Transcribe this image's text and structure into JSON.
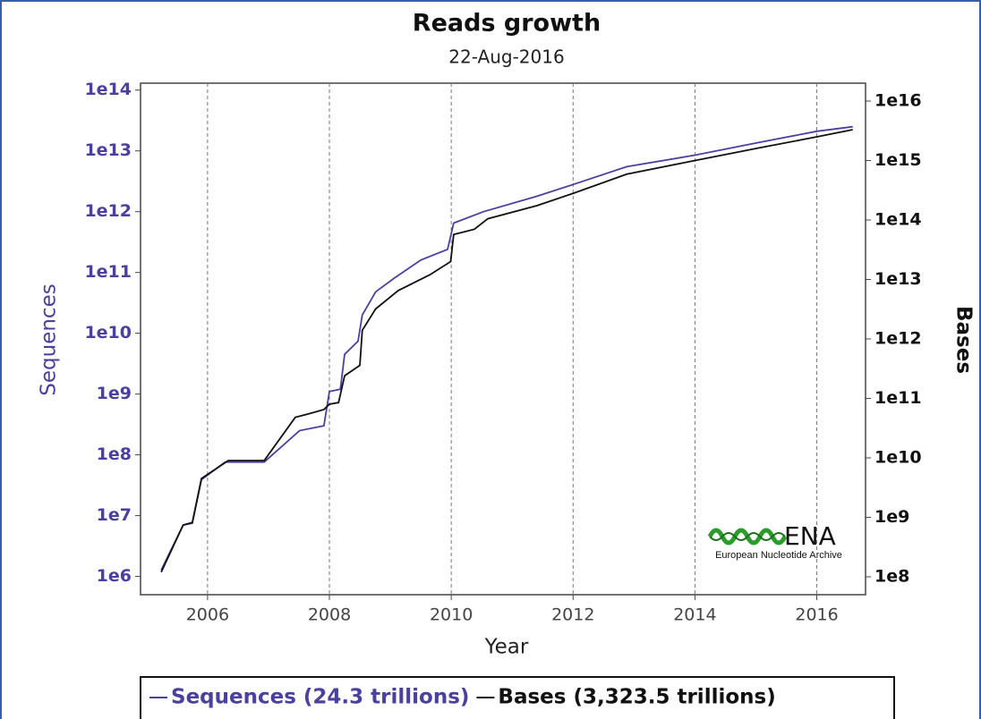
{
  "chart_data": {
    "type": "line",
    "title": "Reads growth",
    "subtitle": "22-Aug-2016",
    "xlabel": "Year",
    "ylabel": "Sequences",
    "y2label": "Bases",
    "logo": {
      "name": "ENA",
      "subtitle": "European Nucleotide Archive"
    },
    "xlim": [
      2004.9,
      2016.8
    ],
    "xticks": [
      2006,
      2008,
      2010,
      2012,
      2014,
      2016
    ],
    "ylim": [
      500000,
      130000000000000
    ],
    "ylog": true,
    "yticks": [
      {
        "value": 1000000.0,
        "label": "1e6"
      },
      {
        "value": 10000000.0,
        "label": "1e7"
      },
      {
        "value": 100000000.0,
        "label": "1e8"
      },
      {
        "value": 1000000000.0,
        "label": "1e9"
      },
      {
        "value": 10000000000.0,
        "label": "1e10"
      },
      {
        "value": 100000000000.0,
        "label": "1e11"
      },
      {
        "value": 1000000000000.0,
        "label": "1e12"
      },
      {
        "value": 10000000000000.0,
        "label": "1e13"
      },
      {
        "value": 100000000000000.0,
        "label": "1e14"
      }
    ],
    "y2lim": [
      50000000,
      20000000000000000
    ],
    "y2log": true,
    "y2ticks": [
      {
        "value": 100000000.0,
        "label": "1e8"
      },
      {
        "value": 1000000000.0,
        "label": "1e9"
      },
      {
        "value": 10000000000.0,
        "label": "1e10"
      },
      {
        "value": 100000000000.0,
        "label": "1e11"
      },
      {
        "value": 1000000000000.0,
        "label": "1e12"
      },
      {
        "value": 10000000000000.0,
        "label": "1e13"
      },
      {
        "value": 100000000000000.0,
        "label": "1e14"
      },
      {
        "value": 1000000000000000.0,
        "label": "1e15"
      },
      {
        "value": 1e+16,
        "label": "1e16"
      }
    ],
    "grid": "x",
    "legend": "bottom",
    "series": [
      {
        "name": "Sequences (24.3 trillions)",
        "color": "#4a40a0",
        "axis": "y",
        "x": [
          2005.24,
          2005.6,
          2005.75,
          2005.9,
          2006.29,
          2006.93,
          2007.51,
          2007.91,
          2008.0,
          2008.18,
          2008.25,
          2008.47,
          2008.54,
          2008.76,
          2009.06,
          2009.5,
          2009.94,
          2010.04,
          2010.53,
          2011.41,
          2012.0,
          2012.88,
          2014.0,
          2015.09,
          2016.0,
          2016.59
        ],
        "values": [
          1270000,
          7000000,
          7500000,
          39000000,
          76000000,
          76000000,
          250000000,
          300000000,
          1100000000,
          1200000000,
          4500000000,
          7400000000,
          20000000000,
          48000000000,
          80000000000,
          160000000000,
          240000000000,
          650000000000,
          1000000000000,
          1800000000000,
          2800000000000,
          5500000000000,
          8500000000000,
          14000000000000,
          21000000000000,
          25000000000000
        ]
      },
      {
        "name": "Bases (3,323.5 trillions)",
        "color": "#111111",
        "axis": "y2",
        "x": [
          2005.24,
          2005.6,
          2005.75,
          2005.9,
          2006.34,
          2006.93,
          2007.44,
          2007.66,
          2007.91,
          2008.0,
          2008.15,
          2008.25,
          2008.5,
          2008.54,
          2008.76,
          2009.13,
          2009.65,
          2009.99,
          2010.04,
          2010.38,
          2010.6,
          2011.41,
          2012.0,
          2012.88,
          2014.0,
          2015.09,
          2016.0,
          2016.59
        ],
        "values": [
          120000000,
          740000000,
          820000000,
          4500000000,
          9000000000,
          9000000000,
          48000000000,
          55000000000,
          65000000000,
          80000000000,
          85000000000,
          240000000000,
          360000000000,
          1400000000000,
          3200000000000,
          6500000000000,
          12000000000000,
          20000000000000,
          57000000000000,
          70000000000000,
          105000000000000,
          175000000000000,
          280000000000000,
          590000000000000,
          1000000000000000,
          1660000000000000,
          2500000000000000,
          3300000000000000
        ]
      }
    ]
  }
}
